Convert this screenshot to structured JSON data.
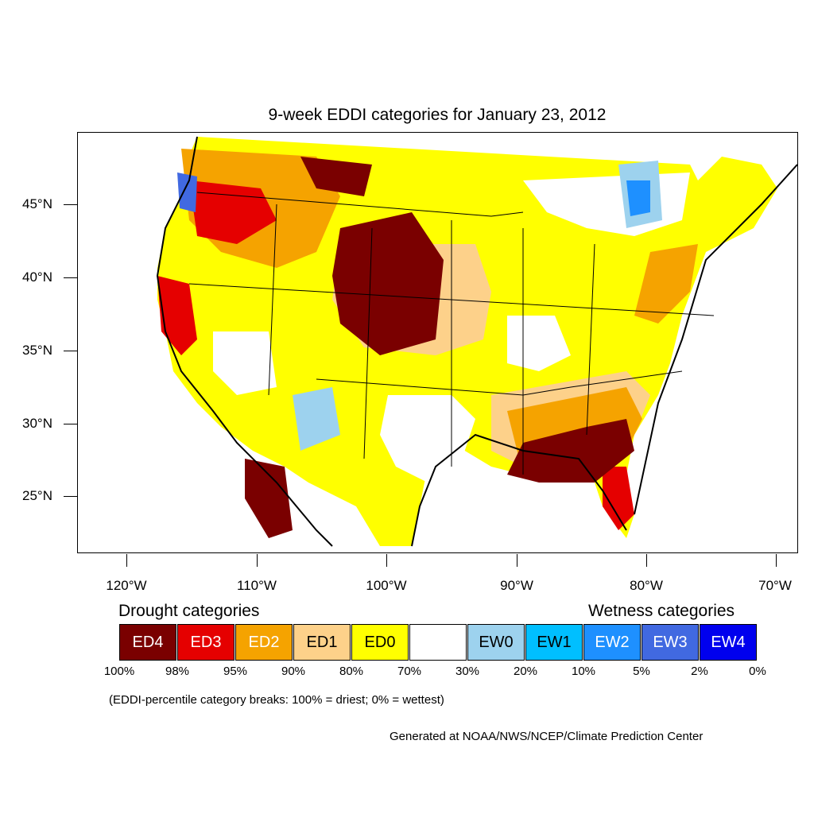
{
  "title": "9-week EDDI categories for January 23, 2012",
  "axes": {
    "lat_labels": [
      "45°N",
      "40°N",
      "35°N",
      "30°N",
      "25°N"
    ],
    "lon_labels": [
      "120°W",
      "110°W",
      "100°W",
      "90°W",
      "80°W",
      "70°W"
    ]
  },
  "legend": {
    "drought_title": "Drought categories",
    "wetness_title": "Wetness categories",
    "categories": [
      {
        "label": "ED4",
        "color": "#7a0000",
        "text_color": "#ffffff"
      },
      {
        "label": "ED3",
        "color": "#e50000",
        "text_color": "#ffffff"
      },
      {
        "label": "ED2",
        "color": "#f5a300",
        "text_color": "#ffffff"
      },
      {
        "label": "ED1",
        "color": "#fdd18a",
        "text_color": "#000000"
      },
      {
        "label": "ED0",
        "color": "#ffff00",
        "text_color": "#000000"
      },
      {
        "label": "",
        "color": "#ffffff",
        "text_color": "#000000"
      },
      {
        "label": "EW0",
        "color": "#9dd2ee",
        "text_color": "#000000"
      },
      {
        "label": "EW1",
        "color": "#00bfff",
        "text_color": "#000000"
      },
      {
        "label": "EW2",
        "color": "#1e90ff",
        "text_color": "#ffffff"
      },
      {
        "label": "EW3",
        "color": "#4169e1",
        "text_color": "#ffffff"
      },
      {
        "label": "EW4",
        "color": "#0000ee",
        "text_color": "#ffffff"
      }
    ],
    "breaks": [
      "100%",
      "98%",
      "95%",
      "90%",
      "80%",
      "70%",
      "30%",
      "20%",
      "10%",
      "5%",
      "2%",
      "0%"
    ]
  },
  "note": "(EDDI-percentile category breaks: 100% = driest; 0% = wettest)",
  "credit": "Generated at NOAA/NWS/NCEP/Climate Prediction Center"
}
